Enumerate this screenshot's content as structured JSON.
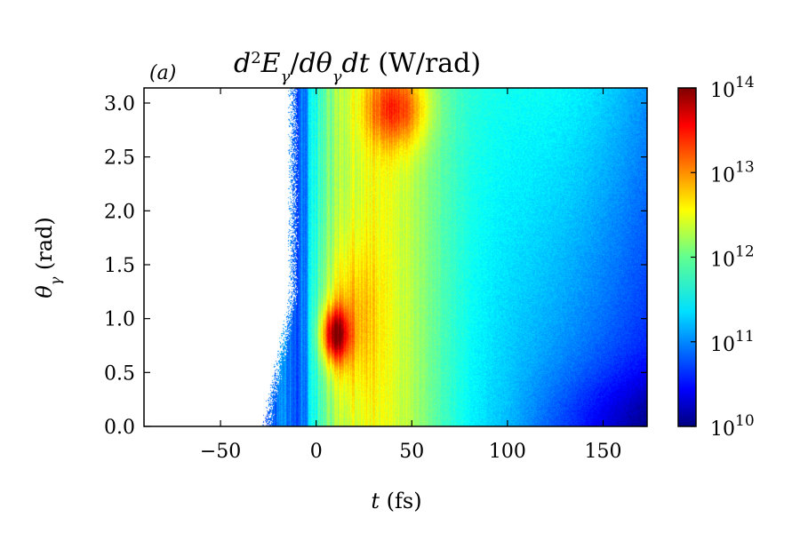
{
  "chart_data": {
    "type": "heatmap",
    "panel_label": "(a)",
    "title": "d²Eγ/dθγdt (W/rad)",
    "xlabel": "t (fs)",
    "ylabel": "θγ (rad)",
    "xlim": [
      -90,
      173
    ],
    "ylim": [
      0,
      3.14
    ],
    "x_ticks": [
      {
        "value": -50,
        "label": "−50"
      },
      {
        "value": 0,
        "label": "0"
      },
      {
        "value": 50,
        "label": "50"
      },
      {
        "value": 100,
        "label": "100"
      },
      {
        "value": 150,
        "label": "150"
      }
    ],
    "y_ticks": [
      {
        "value": 0.0,
        "label": "0.0"
      },
      {
        "value": 0.5,
        "label": "0.5"
      },
      {
        "value": 1.0,
        "label": "1.0"
      },
      {
        "value": 1.5,
        "label": "1.5"
      },
      {
        "value": 2.0,
        "label": "2.0"
      },
      {
        "value": 2.5,
        "label": "2.5"
      },
      {
        "value": 3.0,
        "label": "3.0"
      }
    ],
    "colorbar": {
      "scale": "log",
      "colormap": "jet",
      "range": [
        10000000000.0,
        100000000000000.0
      ],
      "ticks": [
        {
          "exp": 10,
          "base": "10",
          "sup": "10"
        },
        {
          "exp": 11,
          "base": "10",
          "sup": "11"
        },
        {
          "exp": 12,
          "base": "10",
          "sup": "12"
        },
        {
          "exp": 13,
          "base": "10",
          "sup": "13"
        },
        {
          "exp": 14,
          "base": "10",
          "sup": "14"
        }
      ]
    },
    "grid": false,
    "features": [
      {
        "t_range": [
          -90,
          -12
        ],
        "theta_range": [
          0,
          3.14
        ],
        "log10_value": null
      },
      {
        "t": 10,
        "theta": 0.85,
        "log10_value": 13.6
      },
      {
        "t": 42,
        "theta": 2.9,
        "log10_value": 13.1
      },
      {
        "t": 25,
        "theta": 1.5,
        "log10_value": 12.4
      },
      {
        "t": 90,
        "theta": 1.5,
        "log10_value": 11.7
      },
      {
        "t": 160,
        "theta": 0.2,
        "log10_value": 10.4
      },
      {
        "t": 160,
        "theta": 2.8,
        "log10_value": 11.0
      }
    ]
  }
}
